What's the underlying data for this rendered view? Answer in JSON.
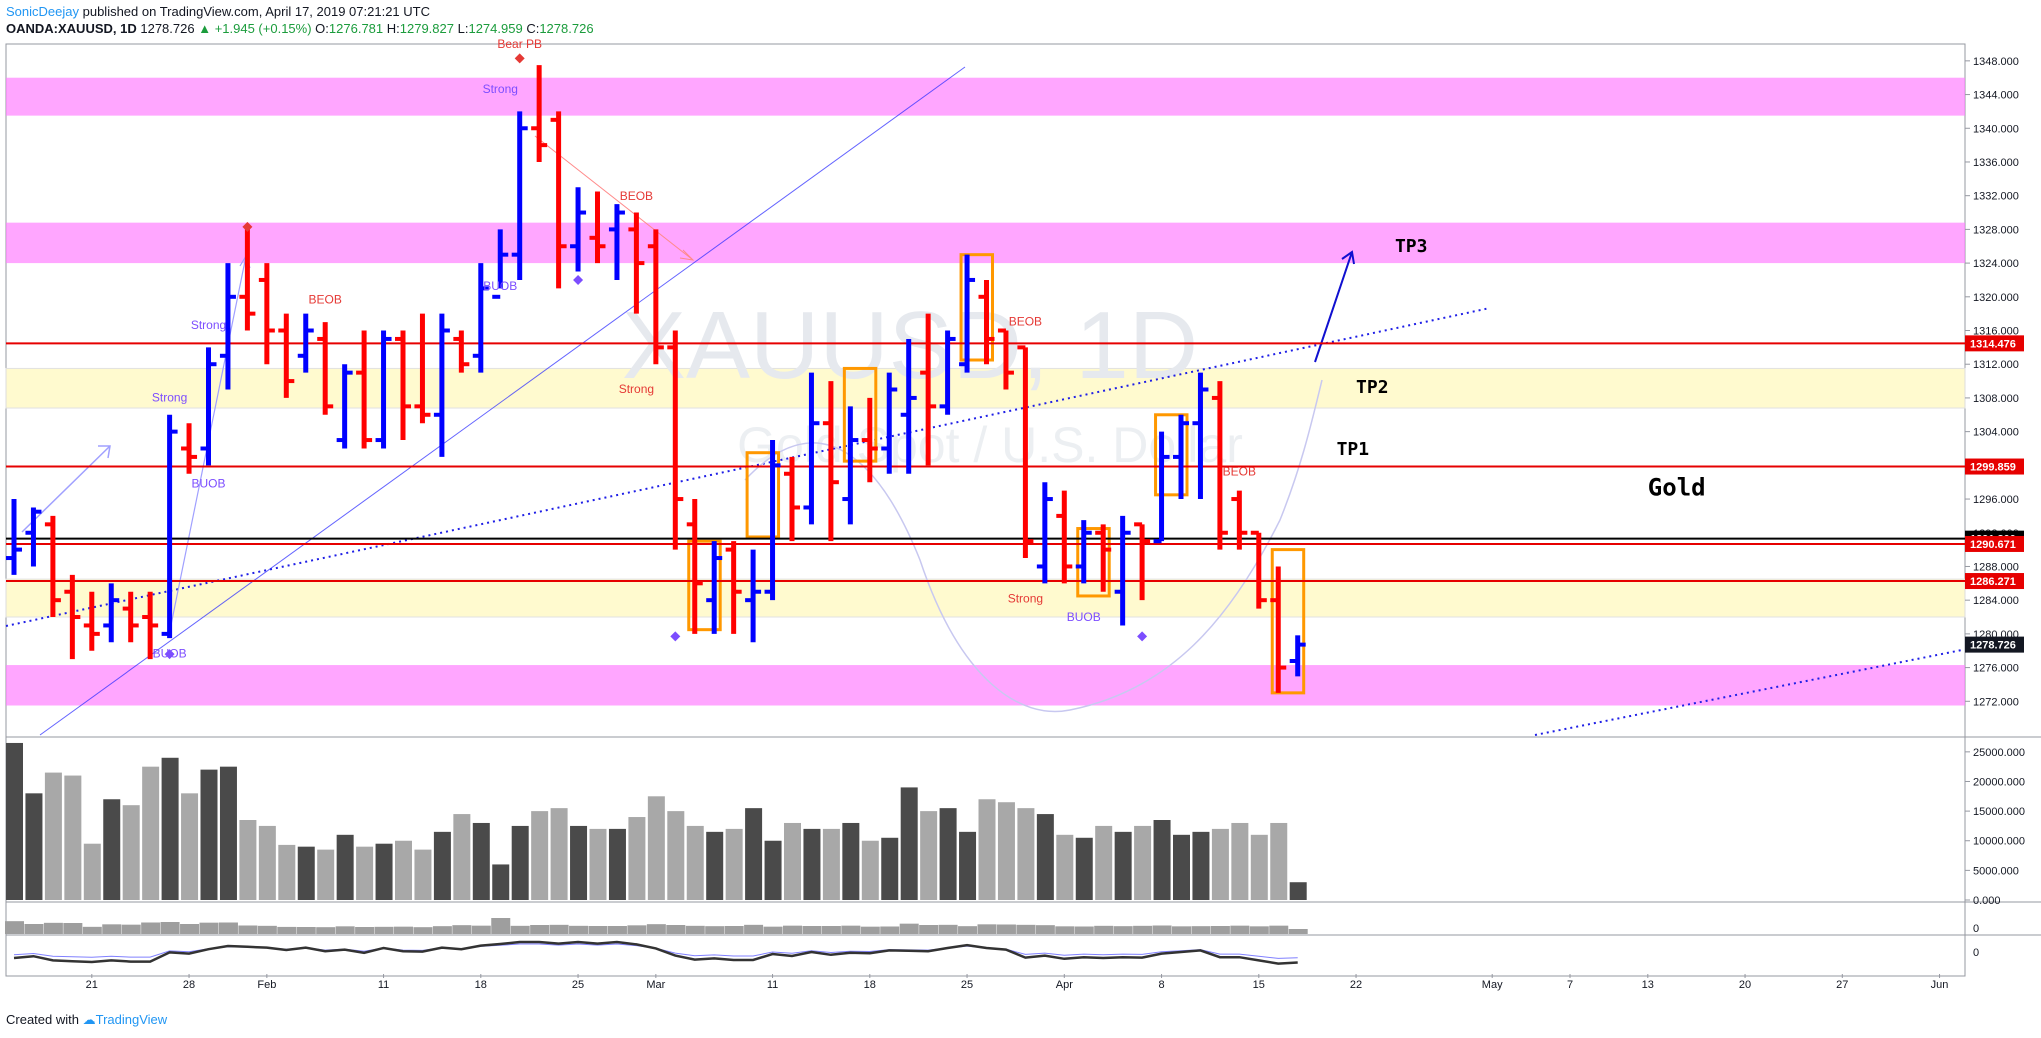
{
  "header": {
    "author": "SonicDeejay",
    "published": " published on TradingView.com, April 17, 2019 07:21:21 UTC",
    "symbol": "OANDA:XAUUSD, 1D",
    "last": "1278.726",
    "change": "▲ +1.945 (+0.15%)",
    "o_label": "O:",
    "o": "1276.781",
    "h_label": "H:",
    "h": "1279.827",
    "l_label": "L:",
    "l": "1274.959",
    "c_label": "C:",
    "c": "1278.726"
  },
  "footer": {
    "created": "Created with",
    "brand": "TradingView"
  },
  "watermark": {
    "symbol": "XAUUSD, 1D",
    "description": "Gold Spot / U.S. Dollar"
  },
  "chart_data": {
    "type": "ohlc",
    "price_ylim": [
      1268,
      1350
    ],
    "price_ticks": [
      1272,
      1276,
      1280,
      1284,
      1288,
      1292,
      1296,
      1300,
      1304,
      1308,
      1312,
      1316,
      1320,
      1324,
      1328,
      1332,
      1336,
      1340,
      1344,
      1348
    ],
    "price_tick_labels": [
      "1272.000",
      "1276.000",
      "1280.000",
      "1284.000",
      "1288.000",
      "1292.000",
      "1296.000",
      "1300.000",
      "1304.000",
      "1308.000",
      "1312.000",
      "1316.000",
      "1320.000",
      "1324.000",
      "1328.000",
      "1332.000",
      "1336.000",
      "1340.000",
      "1344.000",
      "1348.000"
    ],
    "volume_ylim": [
      0,
      27000
    ],
    "volume_ticks": [
      0,
      5000,
      10000,
      15000,
      20000,
      25000
    ],
    "volume_tick_labels": [
      "0.000",
      "5000.000",
      "10000.000",
      "15000.000",
      "20000.000",
      "25000.000"
    ],
    "x_axis_labels": [
      {
        "label": "21",
        "i": 4
      },
      {
        "label": "28",
        "i": 9
      },
      {
        "label": "Feb",
        "i": 13
      },
      {
        "label": "11",
        "i": 19
      },
      {
        "label": "18",
        "i": 24
      },
      {
        "label": "25",
        "i": 29
      },
      {
        "label": "Mar",
        "i": 33
      },
      {
        "label": "11",
        "i": 39
      },
      {
        "label": "18",
        "i": 44
      },
      {
        "label": "25",
        "i": 49
      },
      {
        "label": "Apr",
        "i": 54
      },
      {
        "label": "8",
        "i": 59
      },
      {
        "label": "15",
        "i": 64
      },
      {
        "label": "22",
        "i": 69
      },
      {
        "label": "May",
        "i": 76
      },
      {
        "label": "7",
        "i": 80
      },
      {
        "label": "13",
        "i": 84
      },
      {
        "label": "20",
        "i": 89
      },
      {
        "label": "27",
        "i": 94
      },
      {
        "label": "Jun",
        "i": 99
      }
    ],
    "bars": [
      {
        "o": 1289.0,
        "h": 1296.0,
        "l": 1287.0,
        "c": 1290.0,
        "v": 26500
      },
      {
        "o": 1292.0,
        "h": 1295.0,
        "l": 1288.0,
        "c": 1294.5,
        "v": 18000
      },
      {
        "o": 1293.0,
        "h": 1294.0,
        "l": 1282.0,
        "c": 1284.0,
        "v": 21500
      },
      {
        "o": 1285.0,
        "h": 1287.0,
        "l": 1277.0,
        "c": 1282.0,
        "v": 21000
      },
      {
        "o": 1281.0,
        "h": 1285.0,
        "l": 1278.0,
        "c": 1280.0,
        "v": 9500
      },
      {
        "o": 1281.0,
        "h": 1286.0,
        "l": 1279.0,
        "c": 1284.0,
        "v": 17000
      },
      {
        "o": 1283.0,
        "h": 1285.0,
        "l": 1279.0,
        "c": 1281.0,
        "v": 16000
      },
      {
        "o": 1282.0,
        "h": 1285.0,
        "l": 1277.0,
        "c": 1281.0,
        "v": 22500
      },
      {
        "o": 1280.0,
        "h": 1306.0,
        "l": 1279.5,
        "c": 1304.0,
        "v": 24000
      },
      {
        "o": 1302.0,
        "h": 1305.0,
        "l": 1299.0,
        "c": 1301.0,
        "v": 18000
      },
      {
        "o": 1302.0,
        "h": 1314.0,
        "l": 1300.0,
        "c": 1312.0,
        "v": 22000
      },
      {
        "o": 1313.0,
        "h": 1324.0,
        "l": 1309.0,
        "c": 1320.0,
        "v": 22500
      },
      {
        "o": 1320.0,
        "h": 1328.0,
        "l": 1316.0,
        "c": 1318.0,
        "v": 13500
      },
      {
        "o": 1322.0,
        "h": 1324.0,
        "l": 1312.0,
        "c": 1316.0,
        "v": 12500
      },
      {
        "o": 1316.0,
        "h": 1318.0,
        "l": 1308.0,
        "c": 1310.0,
        "v": 9300
      },
      {
        "o": 1313.0,
        "h": 1318.0,
        "l": 1311.0,
        "c": 1316.0,
        "v": 9000
      },
      {
        "o": 1315.0,
        "h": 1317.0,
        "l": 1306.0,
        "c": 1307.0,
        "v": 8500
      },
      {
        "o": 1303.0,
        "h": 1312.0,
        "l": 1302.0,
        "c": 1311.0,
        "v": 11000
      },
      {
        "o": 1311.0,
        "h": 1316.0,
        "l": 1302.0,
        "c": 1303.0,
        "v": 9000
      },
      {
        "o": 1303.0,
        "h": 1316.0,
        "l": 1302.0,
        "c": 1315.0,
        "v": 9500
      },
      {
        "o": 1315.0,
        "h": 1316.0,
        "l": 1303.0,
        "c": 1307.0,
        "v": 10000
      },
      {
        "o": 1307.0,
        "h": 1318.0,
        "l": 1305.0,
        "c": 1306.0,
        "v": 8500
      },
      {
        "o": 1306.0,
        "h": 1318.0,
        "l": 1301.0,
        "c": 1316.0,
        "v": 11500
      },
      {
        "o": 1315.0,
        "h": 1316.0,
        "l": 1311.0,
        "c": 1312.0,
        "v": 14500
      },
      {
        "o": 1313.0,
        "h": 1324.0,
        "l": 1311.0,
        "c": 1321.0,
        "v": 13000
      },
      {
        "o": 1320.0,
        "h": 1328.0,
        "l": 1321.0,
        "c": 1325.0,
        "v": 6000
      },
      {
        "o": 1325.0,
        "h": 1342.0,
        "l": 1322.0,
        "c": 1340.0,
        "v": 12500
      },
      {
        "o": 1340.0,
        "h": 1347.5,
        "l": 1336.0,
        "c": 1338.0,
        "v": 15000
      },
      {
        "o": 1341.0,
        "h": 1342.0,
        "l": 1321.0,
        "c": 1326.0,
        "v": 15500
      },
      {
        "o": 1326.0,
        "h": 1333.0,
        "l": 1323.0,
        "c": 1330.0,
        "v": 12500
      },
      {
        "o": 1327.0,
        "h": 1332.5,
        "l": 1324.0,
        "c": 1326.0,
        "v": 12000
      },
      {
        "o": 1328.0,
        "h": 1331.0,
        "l": 1322.0,
        "c": 1330.0,
        "v": 12000
      },
      {
        "o": 1328.0,
        "h": 1330.0,
        "l": 1318.0,
        "c": 1324.0,
        "v": 14000
      },
      {
        "o": 1326.0,
        "h": 1328.0,
        "l": 1312.0,
        "c": 1314.0,
        "v": 17500
      },
      {
        "o": 1314.0,
        "h": 1316.0,
        "l": 1290.0,
        "c": 1296.0,
        "v": 15000
      },
      {
        "o": 1293.0,
        "h": 1296.0,
        "l": 1280.0,
        "c": 1286.0,
        "v": 12500
      },
      {
        "o": 1284.0,
        "h": 1291.0,
        "l": 1280.0,
        "c": 1289.0,
        "v": 11500
      },
      {
        "o": 1290.0,
        "h": 1291.0,
        "l": 1280.0,
        "c": 1285.0,
        "v": 12000
      },
      {
        "o": 1284.0,
        "h": 1290.0,
        "l": 1279.0,
        "c": 1285.0,
        "v": 15500
      },
      {
        "o": 1285.0,
        "h": 1303.0,
        "l": 1284.0,
        "c": 1300.0,
        "v": 10000
      },
      {
        "o": 1299.0,
        "h": 1301.0,
        "l": 1291.0,
        "c": 1295.0,
        "v": 13000
      },
      {
        "o": 1295.0,
        "h": 1311.0,
        "l": 1293.0,
        "c": 1305.0,
        "v": 12000
      },
      {
        "o": 1305.0,
        "h": 1310.0,
        "l": 1291.0,
        "c": 1298.0,
        "v": 12000
      },
      {
        "o": 1296.0,
        "h": 1307.0,
        "l": 1293.0,
        "c": 1303.0,
        "v": 13000
      },
      {
        "o": 1303.0,
        "h": 1308.0,
        "l": 1298.0,
        "c": 1302.0,
        "v": 10000
      },
      {
        "o": 1302.0,
        "h": 1311.0,
        "l": 1299.0,
        "c": 1309.0,
        "v": 10500
      },
      {
        "o": 1306.0,
        "h": 1315.0,
        "l": 1299.0,
        "c": 1308.0,
        "v": 19000
      },
      {
        "o": 1311.0,
        "h": 1318.0,
        "l": 1300.0,
        "c": 1307.0,
        "v": 15000
      },
      {
        "o": 1307.0,
        "h": 1316.0,
        "l": 1306.0,
        "c": 1315.0,
        "v": 15500
      },
      {
        "o": 1312.0,
        "h": 1325.0,
        "l": 1311.0,
        "c": 1322.0,
        "v": 11500
      },
      {
        "o": 1320.0,
        "h": 1322.0,
        "l": 1312.0,
        "c": 1315.0,
        "v": 17000
      },
      {
        "o": 1316.0,
        "h": 1316.0,
        "l": 1309.0,
        "c": 1311.0,
        "v": 16500
      },
      {
        "o": 1314.0,
        "h": 1314.0,
        "l": 1289.0,
        "c": 1291.0,
        "v": 15500
      },
      {
        "o": 1288.0,
        "h": 1298.0,
        "l": 1286.0,
        "c": 1296.0,
        "v": 14500
      },
      {
        "o": 1294.0,
        "h": 1297.0,
        "l": 1286.0,
        "c": 1288.0,
        "v": 11000
      },
      {
        "o": 1288.0,
        "h": 1293.5,
        "l": 1286.0,
        "c": 1292.0,
        "v": 10500
      },
      {
        "o": 1292.0,
        "h": 1293.0,
        "l": 1285.0,
        "c": 1290.0,
        "v": 12500
      },
      {
        "o": 1285.0,
        "h": 1294.0,
        "l": 1281.0,
        "c": 1292.0,
        "v": 11500
      },
      {
        "o": 1293.0,
        "h": 1293.0,
        "l": 1284.0,
        "c": 1291.0,
        "v": 12500
      },
      {
        "o": 1291.0,
        "h": 1304.0,
        "l": 1291.0,
        "c": 1301.0,
        "v": 13500
      },
      {
        "o": 1301.0,
        "h": 1306.0,
        "l": 1296.0,
        "c": 1305.0,
        "v": 11000
      },
      {
        "o": 1305.0,
        "h": 1311.0,
        "l": 1296.0,
        "c": 1309.0,
        "v": 11500
      },
      {
        "o": 1308.0,
        "h": 1310.0,
        "l": 1290.0,
        "c": 1292.0,
        "v": 12000
      },
      {
        "o": 1296.0,
        "h": 1297.0,
        "l": 1290.0,
        "c": 1292.0,
        "v": 13000
      },
      {
        "o": 1292.0,
        "h": 1292.0,
        "l": 1283.0,
        "c": 1284.0,
        "v": 11000
      },
      {
        "o": 1284.0,
        "h": 1288.0,
        "l": 1273.0,
        "c": 1276.0,
        "v": 13000
      },
      {
        "o": 1276.781,
        "h": 1279.827,
        "l": 1274.959,
        "c": 1278.726,
        "v": 3000
      }
    ],
    "zones": [
      {
        "from": 1341.5,
        "to": 1346.0,
        "color": "#ff80ff"
      },
      {
        "from": 1324.0,
        "to": 1328.8,
        "color": "#ff80ff"
      },
      {
        "from": 1306.8,
        "to": 1311.5,
        "color": "#fffacd"
      },
      {
        "from": 1282.0,
        "to": 1286.5,
        "color": "#fffacd"
      },
      {
        "from": 1271.5,
        "to": 1276.3,
        "color": "#ff80ff"
      }
    ],
    "levels": [
      {
        "value": 1314.476,
        "label": "1314.476",
        "color": "#e60000"
      },
      {
        "value": 1299.859,
        "label": "1299.859",
        "color": "#e60000"
      },
      {
        "value": 1291.3,
        "label": "1291.300",
        "color": "#000000"
      },
      {
        "value": 1290.671,
        "label": "1290.671",
        "color": "#e60000"
      },
      {
        "value": 1286.271,
        "label": "1286.271",
        "color": "#e60000"
      },
      {
        "value": 1278.726,
        "label": "1278.726",
        "color": "#131722",
        "last": true
      }
    ],
    "annotations": [
      {
        "text": "Bear PB",
        "i": 26,
        "y": 1349.5,
        "color": "#e53935"
      },
      {
        "text": "Strong",
        "i": 25,
        "y": 1344.2,
        "color": "#7c4dff"
      },
      {
        "text": "BUOB",
        "i": 25,
        "y": 1320.8,
        "color": "#7c4dff"
      },
      {
        "text": "BEOB",
        "i": 32,
        "y": 1331.5,
        "color": "#e53935"
      },
      {
        "text": "BEOB",
        "i": 16,
        "y": 1319.2,
        "color": "#e53935"
      },
      {
        "text": "Strong",
        "i": 10,
        "y": 1316.2,
        "color": "#7c4dff"
      },
      {
        "text": "Strong",
        "i": 8,
        "y": 1307.6,
        "color": "#7c4dff"
      },
      {
        "text": "BUOB",
        "i": 10,
        "y": 1297.4,
        "color": "#7c4dff"
      },
      {
        "text": "BUOB",
        "i": 8,
        "y": 1277.2,
        "color": "#7c4dff"
      },
      {
        "text": "Strong",
        "i": 32,
        "y": 1308.6,
        "color": "#e53935"
      },
      {
        "text": "BEOB",
        "i": 52,
        "y": 1316.6,
        "color": "#e53935"
      },
      {
        "text": "Strong",
        "i": 52,
        "y": 1283.7,
        "color": "#e53935"
      },
      {
        "text": "BUOB",
        "i": 55,
        "y": 1281.5,
        "color": "#7c4dff"
      },
      {
        "text": "BEOB",
        "i": 63,
        "y": 1298.8,
        "color": "#e53935"
      }
    ],
    "targets": [
      {
        "text": "TP3",
        "i": 71,
        "y": 1325.3
      },
      {
        "text": "TP2",
        "i": 69,
        "y": 1308.6
      },
      {
        "text": "TP1",
        "i": 68,
        "y": 1301.2
      },
      {
        "text": "Gold",
        "i": 84,
        "y": 1296.4
      }
    ]
  },
  "colors": {
    "up": "#0000ff",
    "down": "#ff0000",
    "orange": "#ff9800",
    "volume_dark": "#4a4a4a",
    "volume_light": "#a8a8a8",
    "trend_blue": "#3030ff",
    "light_purple": "#b8b8f0"
  }
}
